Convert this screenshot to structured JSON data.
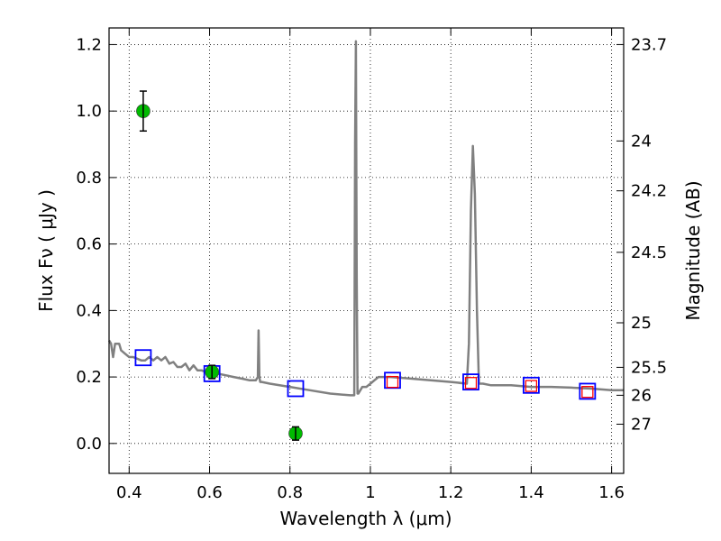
{
  "chart_data": {
    "type": "line",
    "xlabel": "Wavelength  λ (μm)",
    "ylabel": "Flux  Fν  ( μJy )",
    "ylabel_right": "Magnitude (AB)",
    "xlim": [
      0.35,
      1.63
    ],
    "ylim": [
      -0.09,
      1.25
    ],
    "x_ticks": [
      0.4,
      0.6,
      0.8,
      1.0,
      1.2,
      1.4,
      1.6
    ],
    "x_tick_labels": [
      "0.4",
      "0.6",
      "0.8",
      "1",
      "1.2",
      "1.4",
      "1.6"
    ],
    "y_ticks": [
      0.0,
      0.2,
      0.4,
      0.6,
      0.8,
      1.0,
      1.2
    ],
    "y_tick_labels": [
      "0.0",
      "0.2",
      "0.4",
      "0.6",
      "0.8",
      "1.0",
      "1.2"
    ],
    "right_ticks": [
      {
        "label": "23.7",
        "flux": 1.2
      },
      {
        "label": "24",
        "flux": 0.91
      },
      {
        "label": "24.2",
        "flux": 0.76
      },
      {
        "label": "24.5",
        "flux": 0.575
      },
      {
        "label": "25",
        "flux": 0.363
      },
      {
        "label": "25.5",
        "flux": 0.229
      },
      {
        "label": "26",
        "flux": 0.145
      },
      {
        "label": "27",
        "flux": 0.058
      }
    ],
    "grid": true,
    "series": [
      {
        "kind": "spectrum",
        "color": "#808080",
        "x": [
          0.35,
          0.355,
          0.36,
          0.365,
          0.37,
          0.375,
          0.38,
          0.39,
          0.4,
          0.41,
          0.42,
          0.43,
          0.44,
          0.45,
          0.46,
          0.47,
          0.48,
          0.49,
          0.5,
          0.51,
          0.52,
          0.53,
          0.54,
          0.55,
          0.56,
          0.57,
          0.58,
          0.59,
          0.6,
          0.62,
          0.64,
          0.66,
          0.68,
          0.7,
          0.715,
          0.72,
          0.722,
          0.724,
          0.726,
          0.73,
          0.75,
          0.8,
          0.85,
          0.9,
          0.95,
          0.96,
          0.962,
          0.964,
          0.966,
          0.968,
          0.97,
          0.975,
          0.98,
          0.99,
          1.0,
          1.01,
          1.02,
          1.05,
          1.1,
          1.15,
          1.2,
          1.24,
          1.245,
          1.25,
          1.255,
          1.26,
          1.265,
          1.27,
          1.28,
          1.3,
          1.35,
          1.4,
          1.45,
          1.5,
          1.55,
          1.6,
          1.63
        ],
        "y": [
          0.31,
          0.3,
          0.26,
          0.3,
          0.3,
          0.3,
          0.28,
          0.27,
          0.26,
          0.26,
          0.255,
          0.25,
          0.25,
          0.26,
          0.25,
          0.26,
          0.25,
          0.26,
          0.24,
          0.245,
          0.23,
          0.23,
          0.24,
          0.22,
          0.235,
          0.22,
          0.22,
          0.215,
          0.215,
          0.21,
          0.205,
          0.2,
          0.195,
          0.19,
          0.19,
          0.2,
          0.34,
          0.2,
          0.185,
          0.185,
          0.18,
          0.17,
          0.16,
          0.15,
          0.145,
          0.145,
          0.9,
          1.21,
          0.5,
          0.15,
          0.15,
          0.16,
          0.17,
          0.17,
          0.18,
          0.19,
          0.2,
          0.2,
          0.195,
          0.19,
          0.185,
          0.18,
          0.3,
          0.7,
          0.895,
          0.75,
          0.4,
          0.18,
          0.18,
          0.175,
          0.175,
          0.17,
          0.17,
          0.168,
          0.165,
          0.16,
          0.16
        ]
      },
      {
        "kind": "model-photometry",
        "marker": "open-square",
        "color": "#0000ff",
        "x": [
          0.435,
          0.606,
          0.814,
          1.055,
          1.25,
          1.4,
          1.54
        ],
        "y": [
          0.258,
          0.21,
          0.165,
          0.19,
          0.185,
          0.175,
          0.157
        ]
      },
      {
        "kind": "model-photometry",
        "marker": "open-square",
        "color": "#ff0000",
        "x": [
          1.055,
          1.25,
          1.4,
          1.54
        ],
        "y": [
          0.185,
          0.182,
          0.173,
          0.155
        ]
      },
      {
        "kind": "observed-photometry",
        "marker": "filled-circle",
        "color": "#00bb00",
        "x": [
          0.435,
          0.606,
          0.814
        ],
        "y": [
          1.0,
          0.215,
          0.03
        ],
        "yerr": [
          0.06,
          0.02,
          0.02
        ]
      }
    ]
  }
}
